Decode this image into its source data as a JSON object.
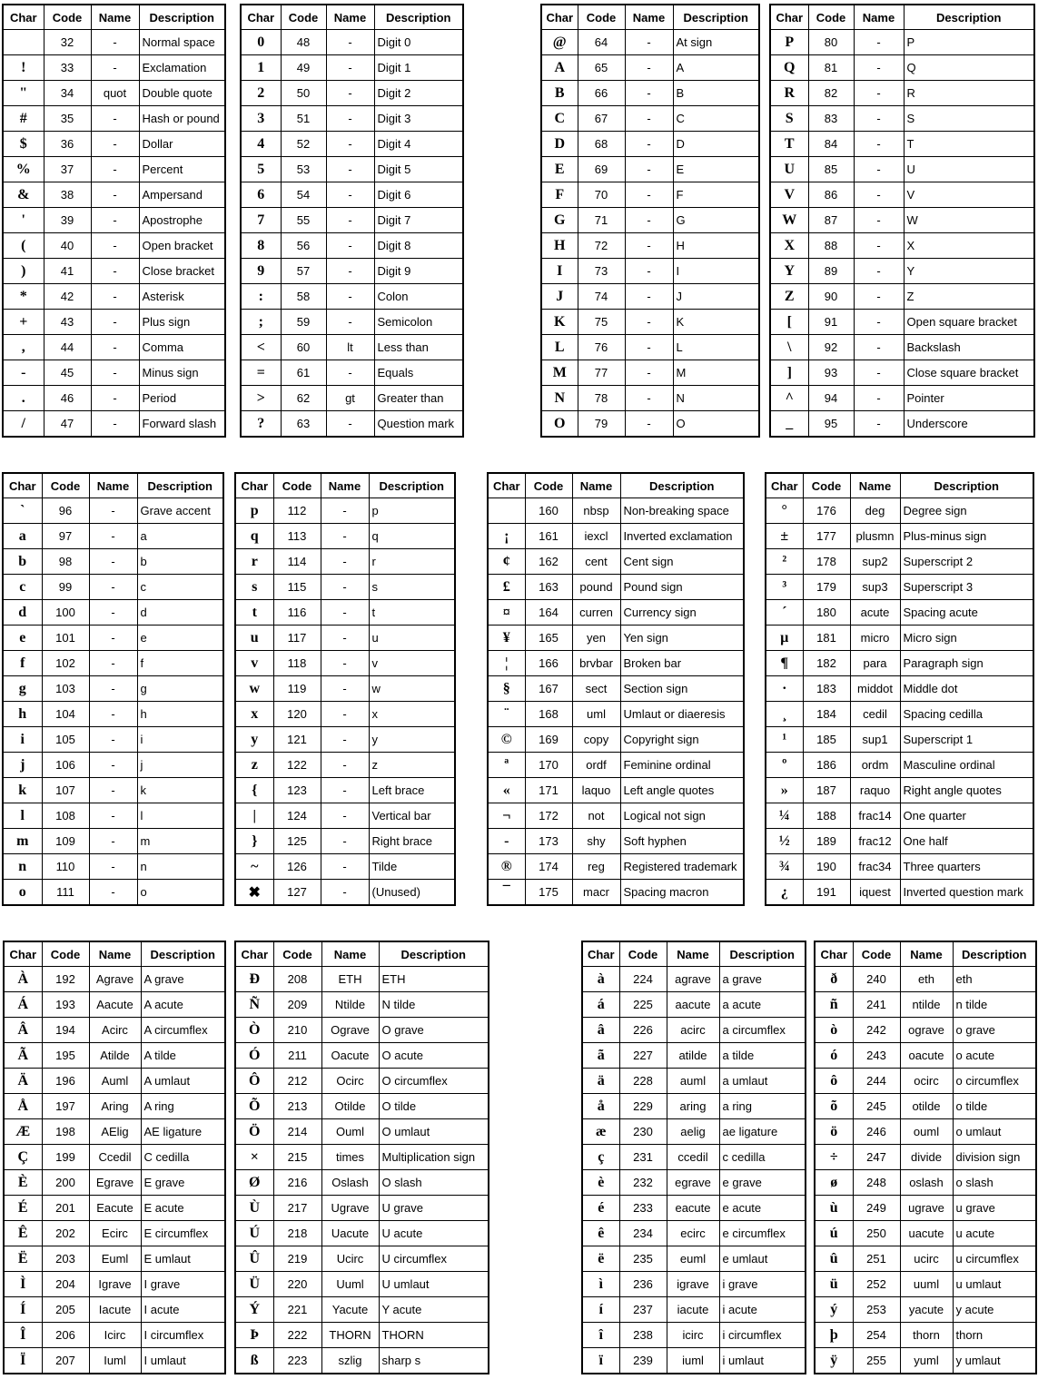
{
  "headers": [
    "Char",
    "Code",
    "Name",
    "Description"
  ],
  "tables": [
    {
      "rows": [
        [
          "",
          "32",
          "-",
          "Normal space"
        ],
        [
          "!",
          "33",
          "-",
          "Exclamation"
        ],
        [
          "\"",
          "34",
          "quot",
          "Double quote"
        ],
        [
          "#",
          "35",
          "-",
          "Hash or pound"
        ],
        [
          "$",
          "36",
          "-",
          "Dollar"
        ],
        [
          "%",
          "37",
          "-",
          "Percent"
        ],
        [
          "&",
          "38",
          "-",
          "Ampersand"
        ],
        [
          "'",
          "39",
          "-",
          "Apostrophe"
        ],
        [
          "(",
          "40",
          "-",
          "Open bracket"
        ],
        [
          ")",
          "41",
          "-",
          "Close bracket"
        ],
        [
          "*",
          "42",
          "-",
          "Asterisk"
        ],
        [
          "+",
          "43",
          "-",
          "Plus sign"
        ],
        [
          ",",
          "44",
          "-",
          "Comma"
        ],
        [
          "-",
          "45",
          "-",
          "Minus sign"
        ],
        [
          ".",
          "46",
          "-",
          "Period"
        ],
        [
          "/",
          "47",
          "-",
          "Forward slash"
        ]
      ]
    },
    {
      "rows": [
        [
          "0",
          "48",
          "-",
          "Digit 0"
        ],
        [
          "1",
          "49",
          "-",
          "Digit 1"
        ],
        [
          "2",
          "50",
          "-",
          "Digit 2"
        ],
        [
          "3",
          "51",
          "-",
          "Digit 3"
        ],
        [
          "4",
          "52",
          "-",
          "Digit 4"
        ],
        [
          "5",
          "53",
          "-",
          "Digit 5"
        ],
        [
          "6",
          "54",
          "-",
          "Digit 6"
        ],
        [
          "7",
          "55",
          "-",
          "Digit 7"
        ],
        [
          "8",
          "56",
          "-",
          "Digit 8"
        ],
        [
          "9",
          "57",
          "-",
          "Digit 9"
        ],
        [
          ":",
          "58",
          "-",
          "Colon"
        ],
        [
          ";",
          "59",
          "-",
          "Semicolon"
        ],
        [
          "<",
          "60",
          "lt",
          "Less than"
        ],
        [
          "=",
          "61",
          "-",
          "Equals"
        ],
        [
          ">",
          "62",
          "gt",
          "Greater than"
        ],
        [
          "?",
          "63",
          "-",
          "Question mark"
        ]
      ]
    },
    {
      "rows": [
        [
          "@",
          "64",
          "-",
          "At sign"
        ],
        [
          "A",
          "65",
          "-",
          "A"
        ],
        [
          "B",
          "66",
          "-",
          "B"
        ],
        [
          "C",
          "67",
          "-",
          "C"
        ],
        [
          "D",
          "68",
          "-",
          "D"
        ],
        [
          "E",
          "69",
          "-",
          "E"
        ],
        [
          "F",
          "70",
          "-",
          "F"
        ],
        [
          "G",
          "71",
          "-",
          "G"
        ],
        [
          "H",
          "72",
          "-",
          "H"
        ],
        [
          "I",
          "73",
          "-",
          "I"
        ],
        [
          "J",
          "74",
          "-",
          "J"
        ],
        [
          "K",
          "75",
          "-",
          "K"
        ],
        [
          "L",
          "76",
          "-",
          "L"
        ],
        [
          "M",
          "77",
          "-",
          "M"
        ],
        [
          "N",
          "78",
          "-",
          "N"
        ],
        [
          "O",
          "79",
          "-",
          "O"
        ]
      ]
    },
    {
      "rows": [
        [
          "P",
          "80",
          "-",
          "P"
        ],
        [
          "Q",
          "81",
          "-",
          "Q"
        ],
        [
          "R",
          "82",
          "-",
          "R"
        ],
        [
          "S",
          "83",
          "-",
          "S"
        ],
        [
          "T",
          "84",
          "-",
          "T"
        ],
        [
          "U",
          "85",
          "-",
          "U"
        ],
        [
          "V",
          "86",
          "-",
          "V"
        ],
        [
          "W",
          "87",
          "-",
          "W"
        ],
        [
          "X",
          "88",
          "-",
          "X"
        ],
        [
          "Y",
          "89",
          "-",
          "Y"
        ],
        [
          "Z",
          "90",
          "-",
          "Z"
        ],
        [
          "[",
          "91",
          "-",
          "Open square bracket"
        ],
        [
          "\\",
          "92",
          "-",
          "Backslash"
        ],
        [
          "]",
          "93",
          "-",
          "Close square bracket"
        ],
        [
          "^",
          "94",
          "-",
          "Pointer"
        ],
        [
          "_",
          "95",
          "-",
          "Underscore"
        ]
      ]
    },
    {
      "rows": [
        [
          "`",
          "96",
          "-",
          "Grave accent"
        ],
        [
          "a",
          "97",
          "-",
          "a"
        ],
        [
          "b",
          "98",
          "-",
          "b"
        ],
        [
          "c",
          "99",
          "-",
          "c"
        ],
        [
          "d",
          "100",
          "-",
          "d"
        ],
        [
          "e",
          "101",
          "-",
          "e"
        ],
        [
          "f",
          "102",
          "-",
          "f"
        ],
        [
          "g",
          "103",
          "-",
          "g"
        ],
        [
          "h",
          "104",
          "-",
          "h"
        ],
        [
          "i",
          "105",
          "-",
          "i"
        ],
        [
          "j",
          "106",
          "-",
          "j"
        ],
        [
          "k",
          "107",
          "-",
          "k"
        ],
        [
          "l",
          "108",
          "-",
          "l"
        ],
        [
          "m",
          "109",
          "-",
          "m"
        ],
        [
          "n",
          "110",
          "-",
          "n"
        ],
        [
          "o",
          "111",
          "-",
          "o"
        ]
      ]
    },
    {
      "rows": [
        [
          "p",
          "112",
          "-",
          "p"
        ],
        [
          "q",
          "113",
          "-",
          "q"
        ],
        [
          "r",
          "114",
          "-",
          "r"
        ],
        [
          "s",
          "115",
          "-",
          "s"
        ],
        [
          "t",
          "116",
          "-",
          "t"
        ],
        [
          "u",
          "117",
          "-",
          "u"
        ],
        [
          "v",
          "118",
          "-",
          "v"
        ],
        [
          "w",
          "119",
          "-",
          "w"
        ],
        [
          "x",
          "120",
          "-",
          "x"
        ],
        [
          "y",
          "121",
          "-",
          "y"
        ],
        [
          "z",
          "122",
          "-",
          "z"
        ],
        [
          "{",
          "123",
          "-",
          "Left brace"
        ],
        [
          "|",
          "124",
          "-",
          "Vertical bar"
        ],
        [
          "}",
          "125",
          "-",
          "Right brace"
        ],
        [
          "~",
          "126",
          "-",
          "Tilde"
        ],
        [
          "✖",
          "127",
          "-",
          "(Unused)"
        ]
      ]
    },
    {
      "rows": [
        [
          "",
          "160",
          "nbsp",
          "Non-breaking space"
        ],
        [
          "¡",
          "161",
          "iexcl",
          "Inverted exclamation"
        ],
        [
          "¢",
          "162",
          "cent",
          "Cent sign"
        ],
        [
          "£",
          "163",
          "pound",
          "Pound sign"
        ],
        [
          "¤",
          "164",
          "curren",
          "Currency sign"
        ],
        [
          "¥",
          "165",
          "yen",
          "Yen sign"
        ],
        [
          "¦",
          "166",
          "brvbar",
          "Broken bar"
        ],
        [
          "§",
          "167",
          "sect",
          "Section sign"
        ],
        [
          "¨",
          "168",
          "uml",
          "Umlaut or diaeresis"
        ],
        [
          "©",
          "169",
          "copy",
          "Copyright sign"
        ],
        [
          "ª",
          "170",
          "ordf",
          "Feminine ordinal"
        ],
        [
          "«",
          "171",
          "laquo",
          "Left angle quotes"
        ],
        [
          "¬",
          "172",
          "not",
          "Logical not sign"
        ],
        [
          "-",
          "173",
          "shy",
          "Soft hyphen"
        ],
        [
          "®",
          "174",
          "reg",
          "Registered trademark"
        ],
        [
          "¯",
          "175",
          "macr",
          "Spacing macron"
        ]
      ]
    },
    {
      "rows": [
        [
          "°",
          "176",
          "deg",
          "Degree sign"
        ],
        [
          "±",
          "177",
          "plusmn",
          "Plus-minus sign"
        ],
        [
          "²",
          "178",
          "sup2",
          "Superscript 2"
        ],
        [
          "³",
          "179",
          "sup3",
          "Superscript 3"
        ],
        [
          "´",
          "180",
          "acute",
          "Spacing acute"
        ],
        [
          "µ",
          "181",
          "micro",
          "Micro sign"
        ],
        [
          "¶",
          "182",
          "para",
          "Paragraph sign"
        ],
        [
          "·",
          "183",
          "middot",
          "Middle dot"
        ],
        [
          "¸",
          "184",
          "cedil",
          "Spacing cedilla"
        ],
        [
          "¹",
          "185",
          "sup1",
          "Superscript 1"
        ],
        [
          "º",
          "186",
          "ordm",
          "Masculine ordinal"
        ],
        [
          "»",
          "187",
          "raquo",
          "Right angle quotes"
        ],
        [
          "¼",
          "188",
          "frac14",
          "One quarter"
        ],
        [
          "½",
          "189",
          "frac12",
          "One half"
        ],
        [
          "¾",
          "190",
          "frac34",
          "Three quarters"
        ],
        [
          "¿",
          "191",
          "iquest",
          "Inverted question mark"
        ]
      ]
    },
    {
      "rows": [
        [
          "À",
          "192",
          "Agrave",
          "A grave"
        ],
        [
          "Á",
          "193",
          "Aacute",
          "A acute"
        ],
        [
          "Â",
          "194",
          "Acirc",
          "A circumflex"
        ],
        [
          "Ã",
          "195",
          "Atilde",
          "A tilde"
        ],
        [
          "Ä",
          "196",
          "Auml",
          "A umlaut"
        ],
        [
          "Å",
          "197",
          "Aring",
          "A ring"
        ],
        [
          "Æ",
          "198",
          "AElig",
          "AE ligature"
        ],
        [
          "Ç",
          "199",
          "Ccedil",
          "C cedilla"
        ],
        [
          "È",
          "200",
          "Egrave",
          "E grave"
        ],
        [
          "É",
          "201",
          "Eacute",
          "E acute"
        ],
        [
          "Ê",
          "202",
          "Ecirc",
          "E circumflex"
        ],
        [
          "Ë",
          "203",
          "Euml",
          "E umlaut"
        ],
        [
          "Ì",
          "204",
          "Igrave",
          "I grave"
        ],
        [
          "Í",
          "205",
          "Iacute",
          "I acute"
        ],
        [
          "Î",
          "206",
          "Icirc",
          "I circumflex"
        ],
        [
          "Ï",
          "207",
          "Iuml",
          "I umlaut"
        ]
      ]
    },
    {
      "rows": [
        [
          "Ð",
          "208",
          "ETH",
          "ETH"
        ],
        [
          "Ñ",
          "209",
          "Ntilde",
          "N tilde"
        ],
        [
          "Ò",
          "210",
          "Ograve",
          "O grave"
        ],
        [
          "Ó",
          "211",
          "Oacute",
          "O acute"
        ],
        [
          "Ô",
          "212",
          "Ocirc",
          "O circumflex"
        ],
        [
          "Õ",
          "213",
          "Otilde",
          "O tilde"
        ],
        [
          "Ö",
          "214",
          "Ouml",
          "O umlaut"
        ],
        [
          "×",
          "215",
          "times",
          "Multiplication sign"
        ],
        [
          "Ø",
          "216",
          "Oslash",
          "O slash"
        ],
        [
          "Ù",
          "217",
          "Ugrave",
          "U grave"
        ],
        [
          "Ú",
          "218",
          "Uacute",
          "U acute"
        ],
        [
          "Û",
          "219",
          "Ucirc",
          "U circumflex"
        ],
        [
          "Ü",
          "220",
          "Uuml",
          "U umlaut"
        ],
        [
          "Ý",
          "221",
          "Yacute",
          "Y acute"
        ],
        [
          "Þ",
          "222",
          "THORN",
          "THORN"
        ],
        [
          "ß",
          "223",
          "szlig",
          "sharp s"
        ]
      ]
    },
    {
      "rows": [
        [
          "à",
          "224",
          "agrave",
          "a grave"
        ],
        [
          "á",
          "225",
          "aacute",
          "a acute"
        ],
        [
          "â",
          "226",
          "acirc",
          "a circumflex"
        ],
        [
          "ã",
          "227",
          "atilde",
          "a tilde"
        ],
        [
          "ä",
          "228",
          "auml",
          "a umlaut"
        ],
        [
          "å",
          "229",
          "aring",
          "a ring"
        ],
        [
          "æ",
          "230",
          "aelig",
          "ae ligature"
        ],
        [
          "ç",
          "231",
          "ccedil",
          "c cedilla"
        ],
        [
          "è",
          "232",
          "egrave",
          "e grave"
        ],
        [
          "é",
          "233",
          "eacute",
          "e acute"
        ],
        [
          "ê",
          "234",
          "ecirc",
          "e circumflex"
        ],
        [
          "ë",
          "235",
          "euml",
          "e umlaut"
        ],
        [
          "ì",
          "236",
          "igrave",
          "i grave"
        ],
        [
          "í",
          "237",
          "iacute",
          "i acute"
        ],
        [
          "î",
          "238",
          "icirc",
          "i circumflex"
        ],
        [
          "ï",
          "239",
          "iuml",
          "i umlaut"
        ]
      ]
    },
    {
      "rows": [
        [
          "ð",
          "240",
          "eth",
          "eth"
        ],
        [
          "ñ",
          "241",
          "ntilde",
          "n tilde"
        ],
        [
          "ò",
          "242",
          "ograve",
          "o grave"
        ],
        [
          "ó",
          "243",
          "oacute",
          "o acute"
        ],
        [
          "ô",
          "244",
          "ocirc",
          "o circumflex"
        ],
        [
          "õ",
          "245",
          "otilde",
          "o tilde"
        ],
        [
          "ö",
          "246",
          "ouml",
          "o umlaut"
        ],
        [
          "÷",
          "247",
          "divide",
          "division sign"
        ],
        [
          "ø",
          "248",
          "oslash",
          "o slash"
        ],
        [
          "ù",
          "249",
          "ugrave",
          "u grave"
        ],
        [
          "ú",
          "250",
          "uacute",
          "u acute"
        ],
        [
          "û",
          "251",
          "ucirc",
          "u circumflex"
        ],
        [
          "ü",
          "252",
          "uuml",
          "u umlaut"
        ],
        [
          "ý",
          "253",
          "yacute",
          "y acute"
        ],
        [
          "þ",
          "254",
          "thorn",
          "thorn"
        ],
        [
          "ÿ",
          "255",
          "yuml",
          "y umlaut"
        ]
      ]
    }
  ]
}
